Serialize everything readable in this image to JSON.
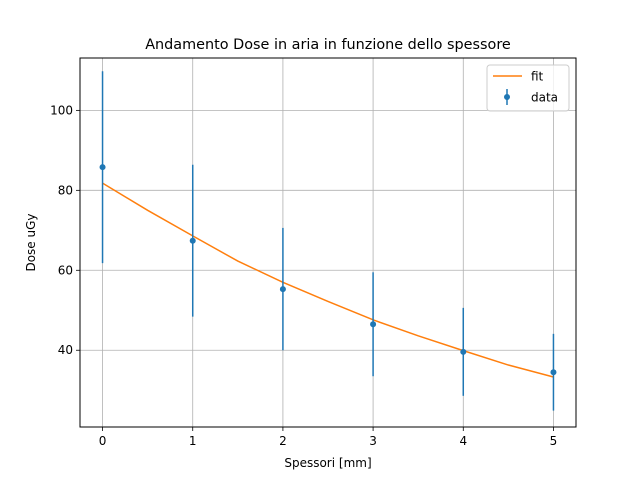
{
  "chart_data": {
    "type": "scatter",
    "title": "Andamento Dose in aria in funzione dello spessore",
    "xlabel": "Spessori [mm]",
    "ylabel": "Dose uGy",
    "xlim": [
      -0.25,
      5.25
    ],
    "ylim": [
      20.8,
      113.1
    ],
    "xticks": [
      0,
      1,
      2,
      3,
      4,
      5
    ],
    "yticks": [
      40,
      60,
      80,
      100
    ],
    "grid": true,
    "legend": {
      "position": "top-right",
      "entries": [
        "fit",
        "data"
      ]
    },
    "series": [
      {
        "name": "data",
        "kind": "errorbar",
        "color": "#1f77b4",
        "x": [
          0,
          1,
          2,
          3,
          4,
          5
        ],
        "y": [
          85.8,
          67.4,
          55.3,
          46.5,
          39.6,
          34.5
        ],
        "yerr": [
          24.0,
          19.0,
          15.3,
          13.0,
          11.0,
          9.6
        ]
      },
      {
        "name": "fit",
        "kind": "line",
        "color": "#ff7f0e",
        "x": [
          0,
          0.5,
          1,
          1.5,
          2,
          2.5,
          3,
          3.5,
          4,
          4.5,
          5
        ],
        "y": [
          81.8,
          75.0,
          68.6,
          62.3,
          57.0,
          52.2,
          47.6,
          43.6,
          39.9,
          36.3,
          33.3
        ]
      }
    ]
  }
}
